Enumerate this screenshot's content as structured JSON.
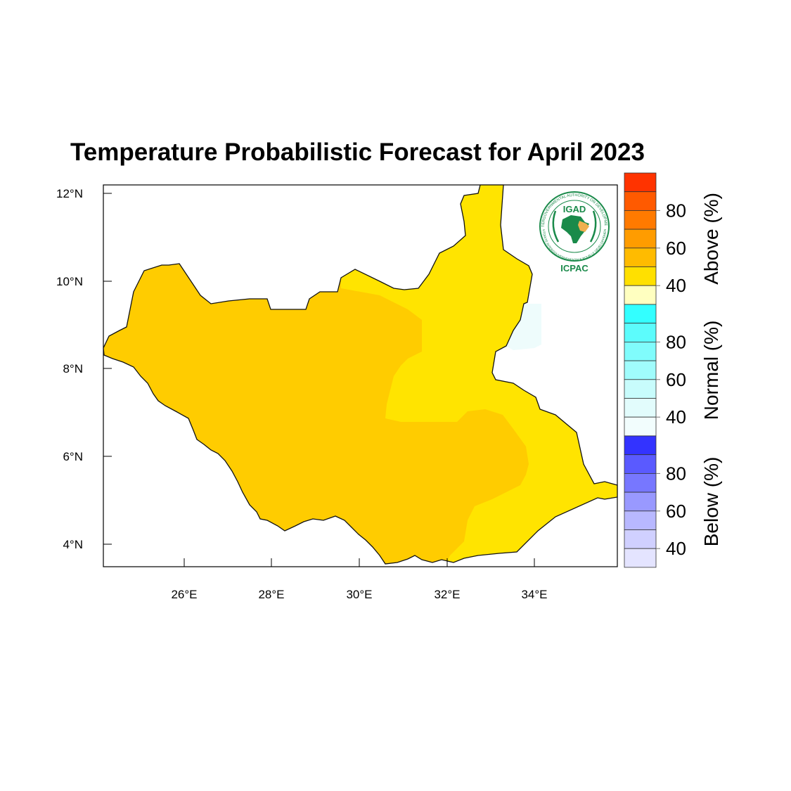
{
  "title": "Temperature Probabilistic Forecast for April 2023",
  "map": {
    "region": "South Sudan",
    "lon_ticks": [
      "26°E",
      "28°E",
      "30°E",
      "32°E",
      "34°E"
    ],
    "lat_ticks": [
      "12°N",
      "10°N",
      "8°N",
      "6°N",
      "4°N"
    ],
    "lon_range": [
      24.2,
      35.8
    ],
    "lat_range": [
      3.5,
      12.2
    ],
    "fill_colors": {
      "above_40_50": "#ffe400",
      "above_50_60": "#ffcc00",
      "normal_40_50": "#eefcfc"
    }
  },
  "logo": {
    "name": "IGAD",
    "subname": "ICPAC",
    "ring_text_top": "INTERGOVERNMENTAL AUTHORITY ON DEVELOPMENT",
    "ring_text_bottom": "AUTORITÉ INTERGOUVERNEMENTALE POUR LE DÉVELOPPEMENT",
    "color": "#1a8a4a"
  },
  "legend": {
    "groups": [
      {
        "label": "Above (%)",
        "ticks": [
          "80",
          "60",
          "40"
        ],
        "colors": [
          "#ff3300",
          "#ff5a00",
          "#ff7a00",
          "#ff9c00",
          "#ffbb00",
          "#ffe000",
          "#ffffc0"
        ]
      },
      {
        "label": "Normal (%)",
        "ticks": [
          "80",
          "60",
          "40"
        ],
        "colors": [
          "#33ffff",
          "#5cfcfc",
          "#80fcfc",
          "#a0fcfc",
          "#c8fcfc",
          "#e2fcfc",
          "#f2fdfd"
        ]
      },
      {
        "label": "Below (%)",
        "ticks": [
          "80",
          "60",
          "40"
        ],
        "colors": [
          "#3333ff",
          "#5a5aff",
          "#7777ff",
          "#9999ff",
          "#b8b8ff",
          "#d0d0ff",
          "#e4e4ff"
        ]
      }
    ]
  }
}
